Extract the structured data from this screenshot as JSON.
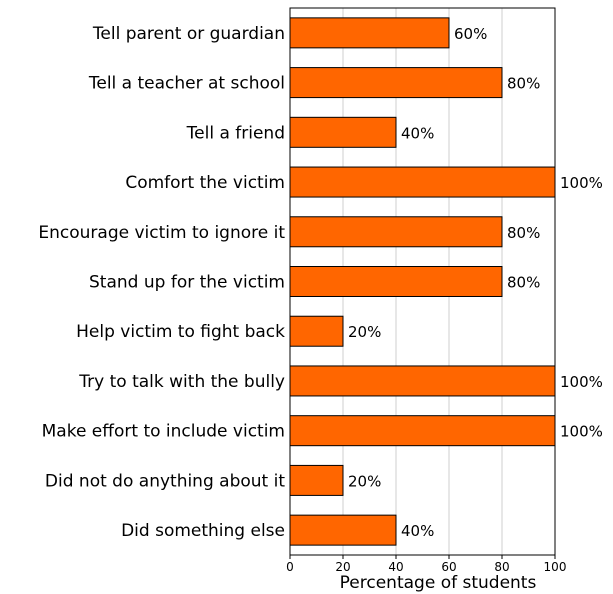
{
  "chart_data": {
    "type": "bar",
    "orientation": "horizontal",
    "categories": [
      "Tell parent or guardian",
      "Tell a teacher at school",
      "Tell a friend",
      "Comfort the victim",
      "Encourage victim to ignore it",
      "Stand up for the victim",
      "Help victim to fight back",
      "Try to talk with the bully",
      "Make effort to include victim",
      "Did not do anything about it",
      "Did something else"
    ],
    "values": [
      60,
      80,
      40,
      100,
      80,
      80,
      20,
      100,
      100,
      20,
      40
    ],
    "value_labels": [
      "60%",
      "80%",
      "40%",
      "100%",
      "80%",
      "80%",
      "20%",
      "100%",
      "100%",
      "20%",
      "40%"
    ],
    "xlabel": "Percentage of students",
    "ylabel": "",
    "xlim": [
      0,
      100
    ],
    "xticks": [
      0,
      20,
      40,
      60,
      80,
      100
    ],
    "grid": true,
    "bar_color": "#ff6600"
  }
}
